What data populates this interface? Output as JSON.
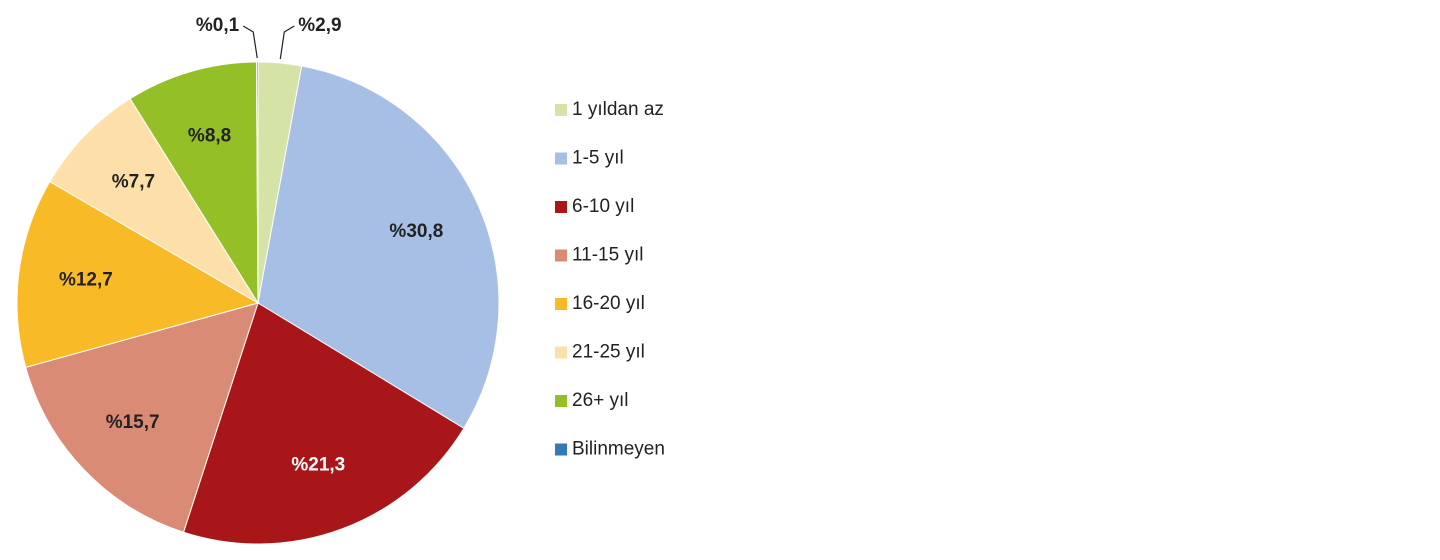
{
  "chart_data": {
    "type": "pie",
    "categories": [
      "1 yıldan az",
      "1-5 yıl",
      "6-10 yıl",
      "11-15 yıl",
      "16-20 yıl",
      "21-25 yıl",
      "26+ yıl",
      "Bilinmeyen"
    ],
    "values": [
      2.9,
      30.8,
      21.3,
      15.7,
      12.7,
      7.7,
      8.8,
      0.1
    ],
    "value_labels": [
      "%2,9",
      "%30,8",
      "%21,3",
      "%15,7",
      "%12,7",
      "%7,7",
      "%8,8",
      "%0,1"
    ],
    "colors": [
      "#d5e3a6",
      "#a7bfe4",
      "#a8161a",
      "#d98b76",
      "#f8ba27",
      "#fde0a9",
      "#95bf27",
      "#2e7bb8"
    ],
    "legend": "right"
  }
}
